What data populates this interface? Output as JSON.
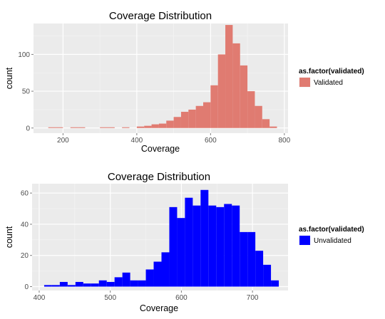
{
  "chart_data": [
    {
      "type": "bar",
      "title": "Coverage Distribution",
      "xlabel": "Coverage",
      "ylabel": "count",
      "xlim": [
        120,
        810
      ],
      "ylim": [
        -7,
        142
      ],
      "x_ticks": [
        200,
        400,
        600,
        800
      ],
      "y_ticks": [
        0,
        50,
        100
      ],
      "grid": true,
      "legend_title": "as.factor(validated)",
      "legend_position": "right",
      "series": [
        {
          "name": "Validated",
          "color": "#e07b71",
          "bin_width": 20,
          "bin_starts": [
            160,
            180,
            200,
            220,
            240,
            260,
            280,
            300,
            320,
            340,
            360,
            380,
            400,
            420,
            440,
            460,
            480,
            500,
            520,
            540,
            560,
            580,
            600,
            620,
            640,
            660,
            680,
            700,
            720,
            740,
            760
          ],
          "values": [
            1,
            1,
            0,
            1,
            1,
            0,
            0,
            1,
            1,
            0,
            1,
            0,
            2,
            3,
            5,
            6,
            10,
            15,
            22,
            25,
            30,
            35,
            58,
            100,
            140,
            115,
            85,
            50,
            30,
            12,
            2
          ]
        }
      ]
    },
    {
      "type": "bar",
      "title": "Coverage Distribution",
      "xlabel": "Coverage",
      "ylabel": "count",
      "xlim": [
        390,
        750
      ],
      "ylim": [
        -2.5,
        66
      ],
      "x_ticks": [
        400,
        500,
        600,
        700
      ],
      "y_ticks": [
        0,
        20,
        40,
        60
      ],
      "grid": true,
      "legend_title": "as.factor(validated)",
      "legend_position": "right",
      "series": [
        {
          "name": "Unvalidated",
          "color": "#0000ff",
          "bin_width": 11,
          "bin_starts": [
            407,
            418,
            429,
            440,
            451,
            462,
            473,
            484,
            495,
            506,
            517,
            528,
            539,
            550,
            561,
            572,
            583,
            594,
            605,
            616,
            627,
            638,
            649,
            660,
            671,
            682,
            693,
            704,
            715,
            726
          ],
          "values": [
            1,
            1,
            3,
            1,
            3,
            2,
            2,
            4,
            3,
            6,
            9,
            4,
            4,
            11,
            16,
            22,
            51,
            44,
            57,
            52,
            62,
            52,
            51,
            53,
            52,
            35,
            35,
            23,
            14,
            4
          ]
        }
      ]
    }
  ]
}
